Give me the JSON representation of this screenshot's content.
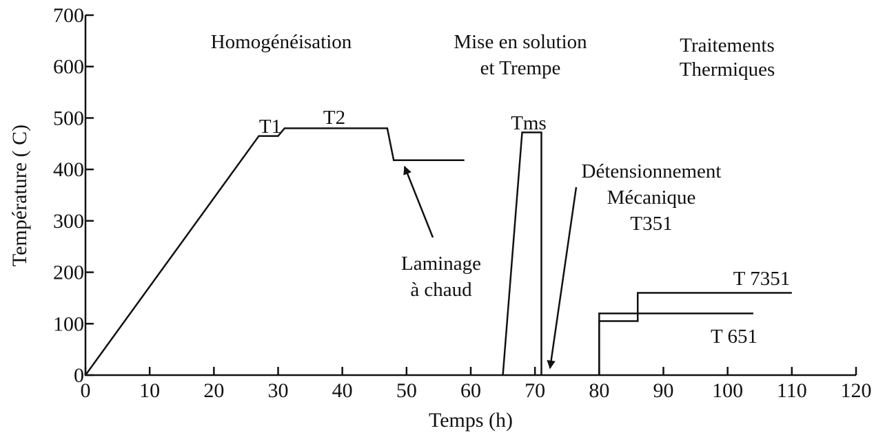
{
  "chart_data": {
    "type": "line",
    "xlabel": "Temps (h)",
    "ylabel": "Température ( C)",
    "xlim": [
      0,
      120
    ],
    "xticks": [
      0,
      10,
      20,
      30,
      40,
      50,
      60,
      70,
      80,
      90,
      100,
      110,
      120
    ],
    "ylim": [
      0,
      700
    ],
    "yticks": [
      0,
      100,
      200,
      300,
      400,
      500,
      600,
      700
    ],
    "series": [
      {
        "color": "#111111",
        "x": [
          0,
          27,
          30,
          31,
          47,
          48,
          59
        ],
        "y": [
          0,
          465,
          465,
          480,
          480,
          418,
          418
        ]
      },
      {
        "color": "#111111",
        "x": [
          65,
          68,
          71,
          71
        ],
        "y": [
          0,
          472,
          472,
          0
        ]
      },
      {
        "color": "#111111",
        "x": [
          80,
          80,
          104
        ],
        "y": [
          0,
          120,
          120
        ]
      },
      {
        "color": "#111111",
        "x": [
          80,
          80,
          86,
          86,
          110
        ],
        "y": [
          0,
          105,
          105,
          160,
          160
        ]
      }
    ],
    "annotations": [
      [
        "Homogénéisation"
      ],
      [
        "Mise en solution",
        "et Trempe"
      ],
      [
        "Traitements",
        "Thermiques"
      ],
      [
        "T1"
      ],
      [
        "T2"
      ],
      [
        "Tms"
      ],
      [
        "Laminage",
        "à chaud"
      ],
      [
        "Détensionnement",
        "Mécanique",
        "T351"
      ],
      [
        "T 7351"
      ],
      [
        "T 651"
      ]
    ]
  }
}
